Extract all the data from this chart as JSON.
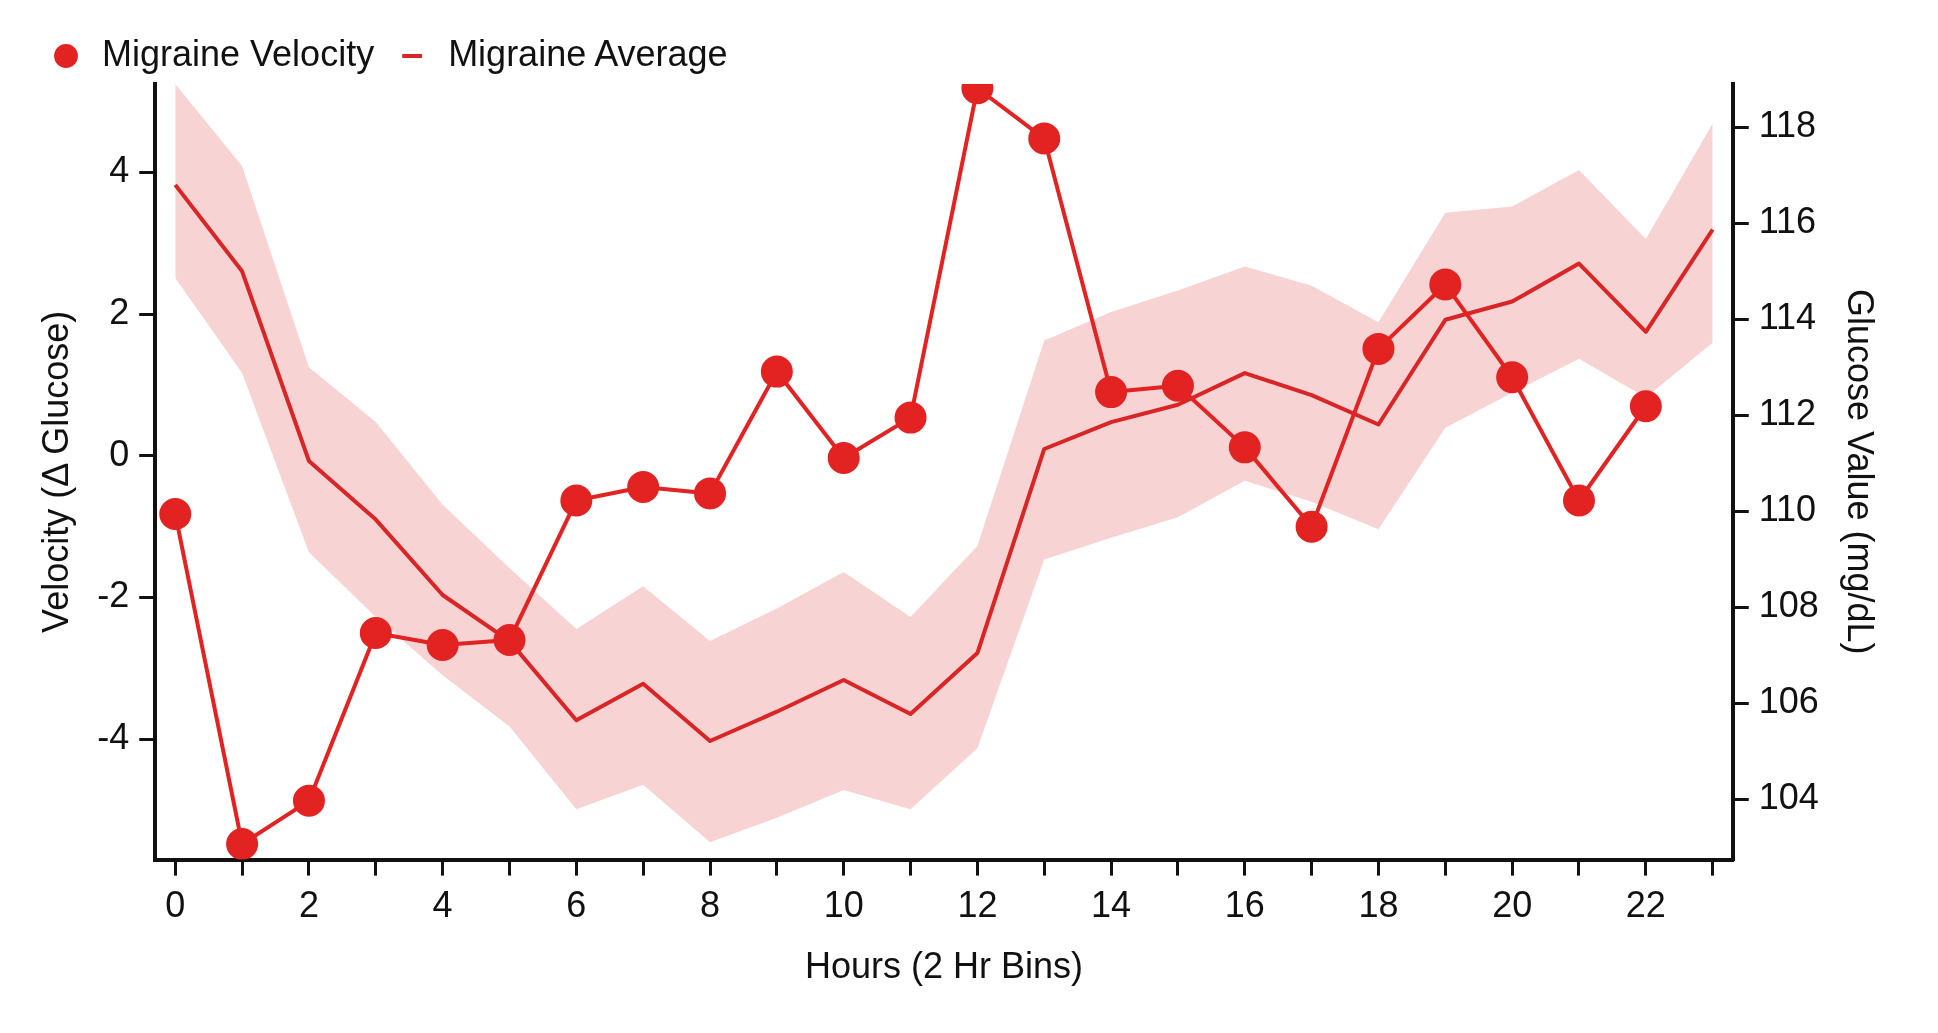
{
  "chart_data": {
    "type": "line",
    "xlabel": "Hours (2 Hr Bins)",
    "ylabel": "Velocity (Δ Glucose)",
    "y2label": "Glucose Value (mg/dL)",
    "xlim": [
      -0.3,
      23.3
    ],
    "xticks": [
      0,
      {
        "value": 1,
        "label": null
      },
      2,
      {
        "value": 3,
        "label": null
      },
      4,
      {
        "value": 5,
        "label": null
      },
      6,
      {
        "value": 7,
        "label": null
      },
      8,
      {
        "value": 9,
        "label": null
      },
      10,
      {
        "value": 11,
        "label": null
      },
      12,
      {
        "value": 13,
        "label": null
      },
      14,
      {
        "value": 15,
        "label": null
      },
      16,
      {
        "value": 17,
        "label": null
      },
      18,
      {
        "value": 19,
        "label": null
      },
      20,
      {
        "value": 21,
        "label": null
      },
      22,
      {
        "value": 23,
        "label": null
      }
    ],
    "ylim": [
      -5.7,
      5.25
    ],
    "yticks": [
      -4,
      -2,
      0,
      2,
      4
    ],
    "y2lim": [
      102.75,
      118.9
    ],
    "y2ticks": [
      104,
      106,
      108,
      110,
      112,
      114,
      116,
      118
    ],
    "grid": false,
    "legend": "top left",
    "series": [
      {
        "name": "Migraine Velocity",
        "axis": "y",
        "marker": "circle",
        "color": "#e32222",
        "x": [
          0,
          1,
          2,
          3,
          4,
          5,
          6,
          7,
          8,
          9,
          10,
          11,
          12,
          13,
          14,
          15,
          16,
          17,
          18,
          19,
          20,
          21,
          22
        ],
        "values": [
          -0.82,
          -5.48,
          -4.87,
          -2.5,
          -2.67,
          -2.6,
          -0.63,
          -0.44,
          -0.53,
          1.19,
          -0.03,
          0.54,
          5.19,
          4.48,
          0.9,
          0.99,
          0.12,
          -1.0,
          1.51,
          2.42,
          1.11,
          -0.63,
          0.7
        ]
      },
      {
        "name": "Migraine Average",
        "axis": "y2",
        "marker": "none",
        "color": "#d92525",
        "x": [
          0,
          1,
          2,
          3,
          4,
          5,
          6,
          7,
          8,
          9,
          10,
          11,
          12,
          13,
          14,
          15,
          16,
          17,
          18,
          19,
          20,
          21,
          22,
          23
        ],
        "values": [
          116.8,
          115.0,
          111.05,
          109.83,
          108.26,
          107.3,
          105.65,
          106.41,
          105.22,
          105.83,
          106.49,
          105.78,
          107.05,
          111.3,
          111.86,
          112.22,
          112.88,
          112.42,
          111.81,
          113.99,
          114.37,
          115.16,
          113.74,
          115.87
        ],
        "lower": [
          114.86,
          112.88,
          109.15,
          107.8,
          106.59,
          105.52,
          103.8,
          104.31,
          103.11,
          103.62,
          104.2,
          103.8,
          105.07,
          109.0,
          109.45,
          109.88,
          110.64,
          110.2,
          109.63,
          111.74,
          112.47,
          113.18,
          112.37,
          113.51
        ],
        "upper": [
          118.9,
          117.19,
          113.0,
          111.86,
          110.14,
          108.82,
          107.55,
          108.44,
          107.3,
          107.98,
          108.74,
          107.8,
          109.28,
          113.56,
          114.15,
          114.6,
          115.1,
          114.7,
          113.94,
          116.22,
          116.35,
          117.11,
          115.67,
          118.08
        ]
      }
    ]
  }
}
